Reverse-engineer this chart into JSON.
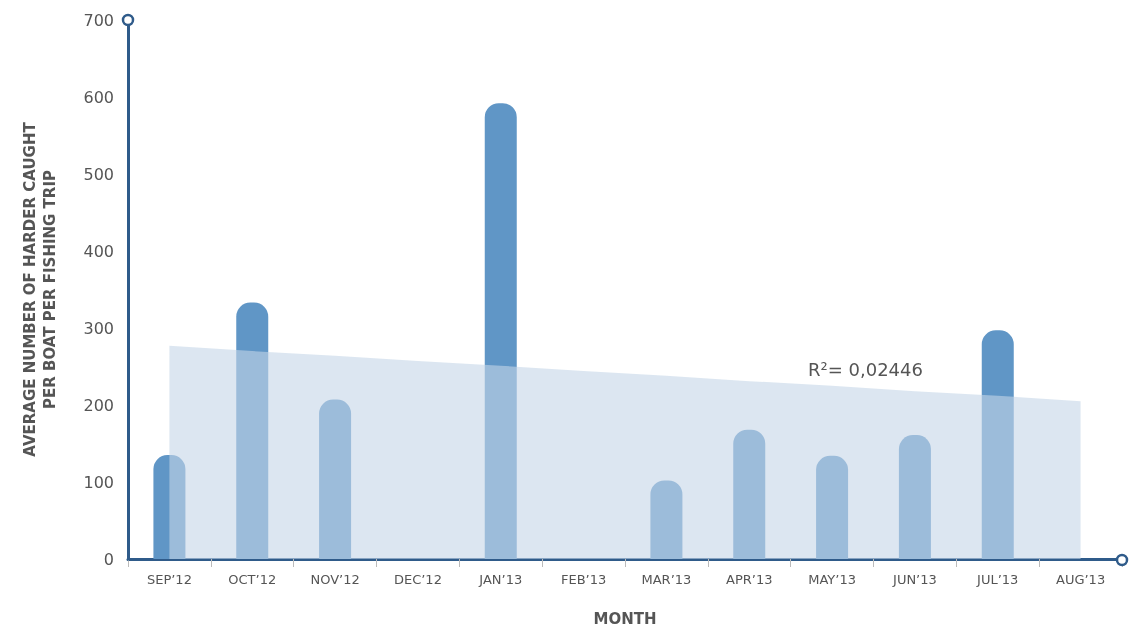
{
  "chart_data": {
    "type": "bar",
    "xlabel": "MONTH",
    "ylabel": "AVERAGE NUMBER OF HARDER CAUGHT\nPER BOAT PER FISHING TRIP",
    "categories": [
      "SEP’12",
      "OCT’12",
      "NOV’12",
      "DEC’12",
      "JAN’13",
      "FEB’13",
      "MAR’13",
      "APR’13",
      "MAY’13",
      "JUN’13",
      "JUL’13",
      "AUG’13"
    ],
    "series": [
      {
        "color": "#6096c6",
        "values": [
          135,
          333,
          207,
          null,
          592,
          null,
          102,
          168,
          134,
          161,
          297,
          null
        ]
      },
      {
        "type": "area",
        "color": "#c4d5e8",
        "values": [
          277,
          270,
          264,
          257,
          251,
          244,
          238,
          231,
          225,
          218,
          212,
          205
        ]
      }
    ],
    "ylim": [
      0,
      700
    ],
    "yticks": [
      0,
      100,
      200,
      300,
      400,
      500,
      600,
      700
    ],
    "grid": false,
    "annotations": [
      "R²= 0,02446"
    ]
  }
}
